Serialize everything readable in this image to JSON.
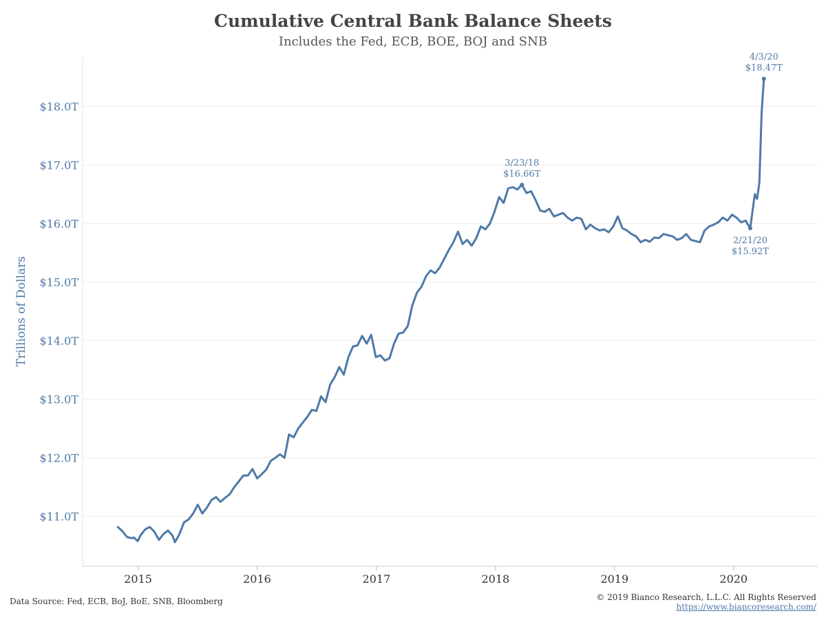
{
  "header": {
    "title": "Cumulative Central Bank Balance Sheets",
    "subtitle": "Includes the Fed, ECB, BOE, BOJ and SNB"
  },
  "footer": {
    "source": "Data Source: Fed, ECB, BoJ, BoE, SNB, Bloomberg",
    "copyright": "© 2019 Bianco Research, L.L.C. All Rights Reserved",
    "url": "https://www.biancoresearch.com/"
  },
  "colors": {
    "line": "#4e79a7",
    "title": "#444444",
    "grid": "#eeeeee"
  },
  "chart_data": {
    "type": "line",
    "title": "Cumulative Central Bank Balance Sheets",
    "subtitle": "Includes the Fed, ECB, BOE, BOJ and SNB",
    "xlabel": "",
    "ylabel": "Trillions of Dollars",
    "xlim": [
      "2014-07-15",
      "2020-09-15"
    ],
    "ylim": [
      10.15,
      18.85
    ],
    "grid": true,
    "x_ticks": [
      {
        "label": "2015",
        "date": "2015-01-01"
      },
      {
        "label": "2016",
        "date": "2016-01-01"
      },
      {
        "label": "2017",
        "date": "2017-01-01"
      },
      {
        "label": "2018",
        "date": "2018-01-01"
      },
      {
        "label": "2019",
        "date": "2019-01-01"
      },
      {
        "label": "2020",
        "date": "2020-01-01"
      }
    ],
    "y_ticks": [
      {
        "label": "$11.0T",
        "value": 11.0
      },
      {
        "label": "$12.0T",
        "value": 12.0
      },
      {
        "label": "$13.0T",
        "value": 13.0
      },
      {
        "label": "$14.0T",
        "value": 14.0
      },
      {
        "label": "$15.0T",
        "value": 15.0
      },
      {
        "label": "$16.0T",
        "value": 16.0
      },
      {
        "label": "$17.0T",
        "value": 17.0
      },
      {
        "label": "$18.0T",
        "value": 18.0
      }
    ],
    "annotations": [
      {
        "date_label": "3/23/18",
        "value_label": "$16.66T",
        "x": "2018-03-23",
        "y": 16.66,
        "position": "above"
      },
      {
        "date_label": "2/21/20",
        "value_label": "$15.92T",
        "x": "2020-02-21",
        "y": 15.92,
        "position": "below"
      },
      {
        "date_label": "4/3/20",
        "value_label": "$18.47T",
        "x": "2020-04-03",
        "y": 18.47,
        "position": "above"
      }
    ],
    "series": [
      {
        "values": [
          [
            "2014-10-31",
            10.82
          ],
          [
            "2014-11-14",
            10.75
          ],
          [
            "2014-11-28",
            10.65
          ],
          [
            "2014-12-12",
            10.63
          ],
          [
            "2014-12-19",
            10.64
          ],
          [
            "2014-12-31",
            10.58
          ],
          [
            "2015-01-09",
            10.68
          ],
          [
            "2015-01-23",
            10.78
          ],
          [
            "2015-02-06",
            10.82
          ],
          [
            "2015-02-20",
            10.74
          ],
          [
            "2015-03-06",
            10.6
          ],
          [
            "2015-03-20",
            10.7
          ],
          [
            "2015-04-03",
            10.76
          ],
          [
            "2015-04-17",
            10.67
          ],
          [
            "2015-04-24",
            10.56
          ],
          [
            "2015-05-08",
            10.7
          ],
          [
            "2015-05-22",
            10.9
          ],
          [
            "2015-06-05",
            10.95
          ],
          [
            "2015-06-19",
            11.05
          ],
          [
            "2015-07-03",
            11.2
          ],
          [
            "2015-07-17",
            11.05
          ],
          [
            "2015-07-31",
            11.15
          ],
          [
            "2015-08-14",
            11.28
          ],
          [
            "2015-08-28",
            11.33
          ],
          [
            "2015-09-11",
            11.25
          ],
          [
            "2015-09-25",
            11.32
          ],
          [
            "2015-10-09",
            11.38
          ],
          [
            "2015-10-23",
            11.5
          ],
          [
            "2015-11-06",
            11.6
          ],
          [
            "2015-11-20",
            11.7
          ],
          [
            "2015-12-04",
            11.7
          ],
          [
            "2015-12-18",
            11.81
          ],
          [
            "2016-01-01",
            11.65
          ],
          [
            "2016-01-15",
            11.72
          ],
          [
            "2016-01-29",
            11.8
          ],
          [
            "2016-02-12",
            11.95
          ],
          [
            "2016-02-26",
            12.0
          ],
          [
            "2016-03-11",
            12.06
          ],
          [
            "2016-03-25",
            12.0
          ],
          [
            "2016-04-08",
            12.4
          ],
          [
            "2016-04-22",
            12.35
          ],
          [
            "2016-05-06",
            12.5
          ],
          [
            "2016-05-20",
            12.6
          ],
          [
            "2016-06-03",
            12.7
          ],
          [
            "2016-06-17",
            12.82
          ],
          [
            "2016-07-01",
            12.8
          ],
          [
            "2016-07-15",
            13.05
          ],
          [
            "2016-07-29",
            12.95
          ],
          [
            "2016-08-12",
            13.25
          ],
          [
            "2016-08-26",
            13.38
          ],
          [
            "2016-09-09",
            13.55
          ],
          [
            "2016-09-23",
            13.42
          ],
          [
            "2016-10-07",
            13.72
          ],
          [
            "2016-10-21",
            13.9
          ],
          [
            "2016-11-04",
            13.92
          ],
          [
            "2016-11-18",
            14.08
          ],
          [
            "2016-12-02",
            13.95
          ],
          [
            "2016-12-16",
            14.1
          ],
          [
            "2016-12-30",
            13.72
          ],
          [
            "2017-01-13",
            13.75
          ],
          [
            "2017-01-27",
            13.66
          ],
          [
            "2017-02-10",
            13.7
          ],
          [
            "2017-02-24",
            13.95
          ],
          [
            "2017-03-10",
            14.12
          ],
          [
            "2017-03-24",
            14.14
          ],
          [
            "2017-04-07",
            14.25
          ],
          [
            "2017-04-21",
            14.6
          ],
          [
            "2017-05-05",
            14.82
          ],
          [
            "2017-05-19",
            14.92
          ],
          [
            "2017-06-02",
            15.1
          ],
          [
            "2017-06-16",
            15.2
          ],
          [
            "2017-06-30",
            15.15
          ],
          [
            "2017-07-14",
            15.25
          ],
          [
            "2017-07-28",
            15.4
          ],
          [
            "2017-08-11",
            15.55
          ],
          [
            "2017-08-25",
            15.68
          ],
          [
            "2017-09-08",
            15.86
          ],
          [
            "2017-09-22",
            15.65
          ],
          [
            "2017-10-06",
            15.72
          ],
          [
            "2017-10-20",
            15.62
          ],
          [
            "2017-11-03",
            15.75
          ],
          [
            "2017-11-17",
            15.95
          ],
          [
            "2017-12-01",
            15.9
          ],
          [
            "2017-12-15",
            16.0
          ],
          [
            "2017-12-29",
            16.2
          ],
          [
            "2018-01-12",
            16.45
          ],
          [
            "2018-01-26",
            16.35
          ],
          [
            "2018-02-09",
            16.6
          ],
          [
            "2018-02-23",
            16.62
          ],
          [
            "2018-03-09",
            16.58
          ],
          [
            "2018-03-23",
            16.66
          ],
          [
            "2018-04-06",
            16.52
          ],
          [
            "2018-04-20",
            16.55
          ],
          [
            "2018-05-04",
            16.4
          ],
          [
            "2018-05-18",
            16.22
          ],
          [
            "2018-06-01",
            16.2
          ],
          [
            "2018-06-15",
            16.25
          ],
          [
            "2018-06-29",
            16.12
          ],
          [
            "2018-07-13",
            16.15
          ],
          [
            "2018-07-27",
            16.18
          ],
          [
            "2018-08-10",
            16.1
          ],
          [
            "2018-08-24",
            16.05
          ],
          [
            "2018-09-07",
            16.1
          ],
          [
            "2018-09-21",
            16.08
          ],
          [
            "2018-10-05",
            15.9
          ],
          [
            "2018-10-19",
            15.98
          ],
          [
            "2018-11-02",
            15.92
          ],
          [
            "2018-11-16",
            15.88
          ],
          [
            "2018-11-30",
            15.9
          ],
          [
            "2018-12-14",
            15.85
          ],
          [
            "2018-12-28",
            15.95
          ],
          [
            "2019-01-11",
            16.12
          ],
          [
            "2019-01-25",
            15.92
          ],
          [
            "2019-02-08",
            15.88
          ],
          [
            "2019-02-22",
            15.82
          ],
          [
            "2019-03-08",
            15.78
          ],
          [
            "2019-03-22",
            15.68
          ],
          [
            "2019-04-05",
            15.72
          ],
          [
            "2019-04-19",
            15.69
          ],
          [
            "2019-05-03",
            15.76
          ],
          [
            "2019-05-17",
            15.75
          ],
          [
            "2019-05-31",
            15.82
          ],
          [
            "2019-06-14",
            15.8
          ],
          [
            "2019-06-28",
            15.78
          ],
          [
            "2019-07-12",
            15.72
          ],
          [
            "2019-07-26",
            15.75
          ],
          [
            "2019-08-09",
            15.82
          ],
          [
            "2019-08-23",
            15.72
          ],
          [
            "2019-09-06",
            15.7
          ],
          [
            "2019-09-20",
            15.68
          ],
          [
            "2019-10-04",
            15.88
          ],
          [
            "2019-10-18",
            15.95
          ],
          [
            "2019-11-01",
            15.98
          ],
          [
            "2019-11-15",
            16.02
          ],
          [
            "2019-11-29",
            16.1
          ],
          [
            "2019-12-13",
            16.05
          ],
          [
            "2019-12-27",
            16.15
          ],
          [
            "2020-01-10",
            16.1
          ],
          [
            "2020-01-24",
            16.02
          ],
          [
            "2020-02-07",
            16.05
          ],
          [
            "2020-02-14",
            15.98
          ],
          [
            "2020-02-21",
            15.92
          ],
          [
            "2020-03-06",
            16.5
          ],
          [
            "2020-03-13",
            16.42
          ],
          [
            "2020-03-20",
            16.7
          ],
          [
            "2020-03-27",
            17.9
          ],
          [
            "2020-04-03",
            18.47
          ]
        ]
      }
    ]
  }
}
